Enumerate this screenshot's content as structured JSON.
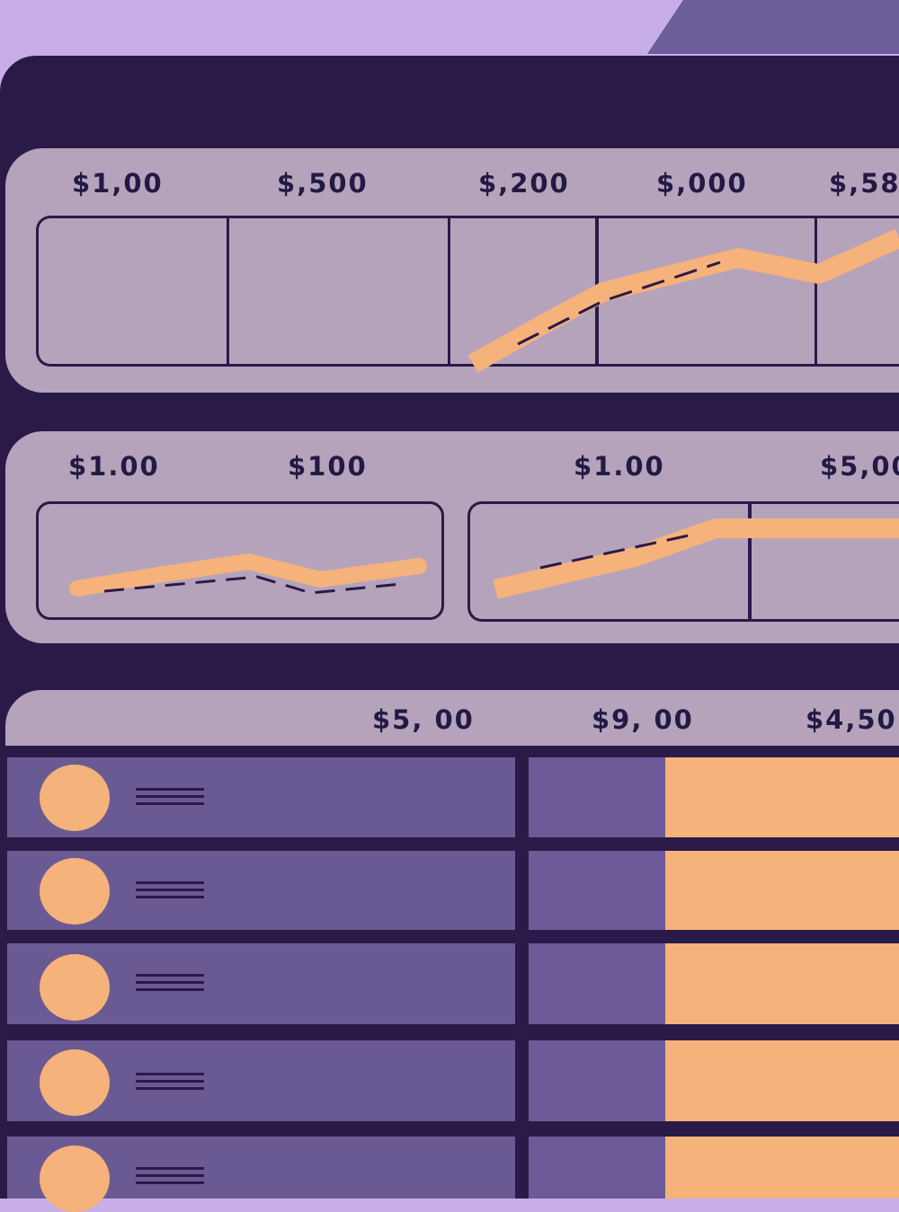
{
  "colors": {
    "background": "#c8aee8",
    "frame": "#2a1a48",
    "card": "#b5a3bc",
    "row": "#6a5a94",
    "accent": "#f5b27a"
  },
  "top_chart": {
    "labels": [
      "$1,00",
      "$,500",
      "$,200",
      "$,000",
      "$,58"
    ]
  },
  "middle_charts": {
    "labels": [
      "$1.00",
      "$100",
      "$1.00",
      "$5,00"
    ]
  },
  "table": {
    "headers": [
      "$5, 00",
      "$9, 00",
      "$4,50"
    ],
    "rows": [
      {
        "icon": "menu-icon"
      },
      {
        "icon": "menu-icon"
      },
      {
        "icon": "menu-icon"
      },
      {
        "icon": "menu-icon"
      },
      {
        "icon": "menu-icon"
      }
    ]
  }
}
